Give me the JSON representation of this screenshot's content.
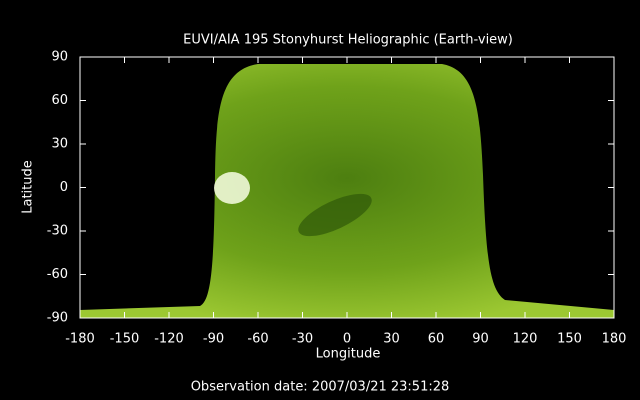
{
  "chart_data": {
    "type": "image",
    "title": "EUVI/AIA 195 Stonyhurst Heliographic (Earth-view)",
    "xlabel": "Longitude",
    "ylabel": "Latitude",
    "xlim": [
      -180,
      180
    ],
    "ylim": [
      -90,
      90
    ],
    "xticks": [
      -180,
      -150,
      -120,
      -90,
      -60,
      -30,
      0,
      30,
      60,
      90,
      120,
      150,
      180
    ],
    "yticks": [
      -90,
      -60,
      -30,
      0,
      30,
      60,
      90
    ],
    "footer": "Observation date: 2007/03/21 23:51:28",
    "color": "#6fa21a",
    "background": "#000000",
    "grid": false
  }
}
